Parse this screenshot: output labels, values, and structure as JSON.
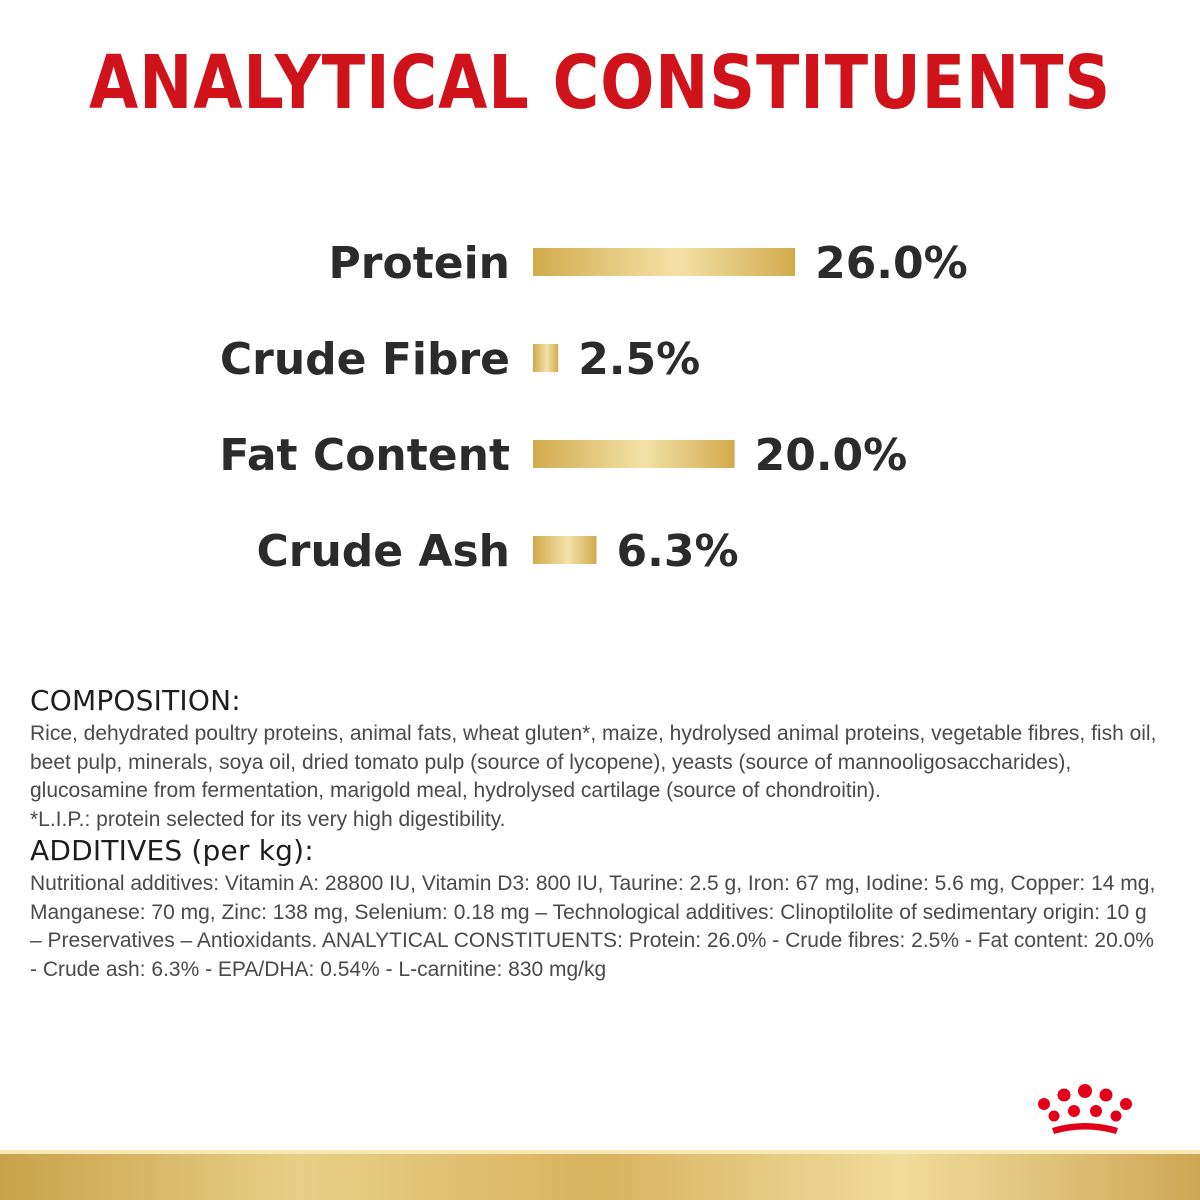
{
  "title": "ANALYTICAL CONSTITUENTS",
  "chart_data": {
    "type": "bar",
    "orientation": "horizontal",
    "title": "ANALYTICAL CONSTITUENTS",
    "categories": [
      "Protein",
      "Crude Fibre",
      "Fat Content",
      "Crude Ash"
    ],
    "values": [
      26.0,
      2.5,
      20.0,
      6.3
    ],
    "value_labels": [
      "26.0%",
      "2.5%",
      "20.0%",
      "6.3%"
    ],
    "unit": "%",
    "grid": false,
    "axes_visible": false
  },
  "composition": {
    "heading": "COMPOSITION:",
    "text": "Rice, dehydrated poultry proteins, animal fats, wheat gluten*, maize, hydrolysed animal proteins, vegetable fibres, fish oil, beet pulp, minerals, soya oil, dried tomato pulp (source of lycopene), yeasts (source of mannooligosaccharides), glucosamine from fermentation, marigold meal, hydrolysed cartilage (source of chondroitin).",
    "footnote": "*L.I.P.: protein selected for its very high digestibility."
  },
  "additives": {
    "heading": "ADDITIVES (per kg):",
    "text": "Nutritional additives: Vitamin A: 28800 IU, Vitamin D3: 800 IU, Taurine: 2.5 g, Iron: 67 mg, Iodine: 5.6 mg, Copper: 14 mg, Manganese: 70 mg, Zinc: 138 mg, Selenium: 0.18 mg – Technological additives: Clinoptilolite of sedimentary origin: 10 g – Preservatives – Antioxidants. ANALYTICAL CONSTITUENTS: Protein: 26.0% - Crude fibres: 2.5% - Fat content: 20.0% - Crude ash: 6.3% - EPA/DHA: 0.54% - L-carnitine: 830 mg/kg"
  },
  "colors": {
    "title": "#d0121b",
    "bar_light": "#f1dc9c",
    "bar_dark": "#d2aa4c",
    "logo": "#e3001b"
  },
  "icons": {
    "logo": "crown-logo-icon"
  }
}
